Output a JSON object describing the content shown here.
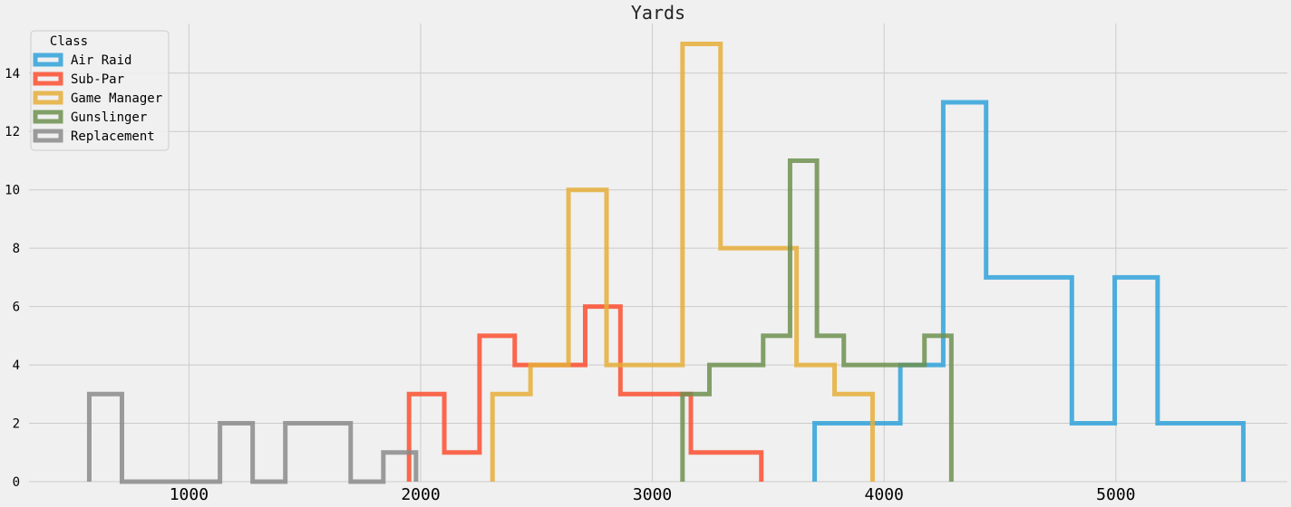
{
  "chart_data": {
    "type": "histogram",
    "title": "Yards",
    "xlabel": "",
    "ylabel": "",
    "xlim": [
      310,
      5740
    ],
    "ylim": [
      0,
      15.7
    ],
    "xticks": [
      1000,
      2000,
      3000,
      4000,
      5000
    ],
    "yticks": [
      0,
      2,
      4,
      6,
      8,
      10,
      12,
      14
    ],
    "grid": true,
    "legend": {
      "title": "Class",
      "placement": "top-left"
    },
    "series": [
      {
        "name": "Air Raid",
        "color": "#30a2da",
        "bins": [
          3700,
          3885,
          4070,
          4255,
          4440,
          4625,
          4810,
          4995,
          5180,
          5365,
          5550
        ],
        "counts": [
          2,
          2,
          4,
          13,
          7,
          7,
          2,
          7,
          2,
          2
        ]
      },
      {
        "name": "Sub-Par",
        "color": "#fc4f30",
        "bins": [
          1950,
          2102,
          2254,
          2406,
          2558,
          2710,
          2862,
          3014,
          3166,
          3318,
          3470
        ],
        "counts": [
          3,
          1,
          5,
          4,
          4,
          6,
          3,
          3,
          1,
          1
        ]
      },
      {
        "name": "Game Manager",
        "color": "#e5ae38",
        "bins": [
          2310,
          2474,
          2638,
          2802,
          2966,
          3130,
          3294,
          3458,
          3622,
          3786,
          3950
        ],
        "counts": [
          3,
          4,
          10,
          4,
          4,
          15,
          8,
          8,
          4,
          3
        ]
      },
      {
        "name": "Gunslinger",
        "color": "#6d904f",
        "bins": [
          3130,
          3246,
          3362,
          3478,
          3594,
          3710,
          3826,
          3942,
          4058,
          4174,
          4290
        ],
        "counts": [
          3,
          4,
          4,
          5,
          11,
          5,
          4,
          4,
          4,
          5
        ]
      },
      {
        "name": "Replacement",
        "color": "#8b8b8b",
        "bins": [
          570,
          711,
          852,
          993,
          1134,
          1275,
          1416,
          1557,
          1698,
          1839,
          1980
        ],
        "counts": [
          3,
          0,
          0,
          0,
          2,
          0,
          2,
          2,
          0,
          1
        ]
      }
    ]
  }
}
